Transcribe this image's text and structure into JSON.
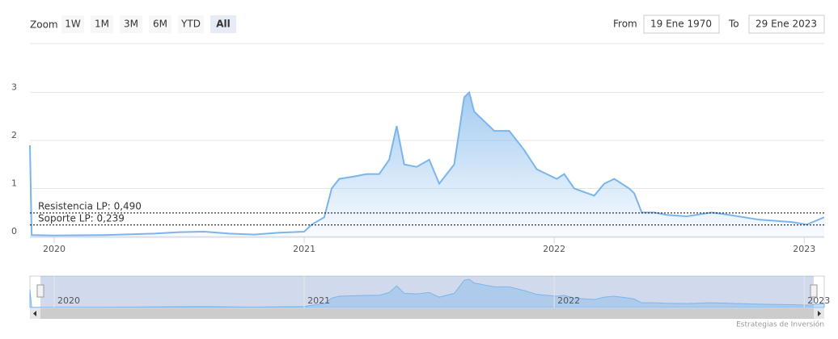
{
  "chart_data": {
    "type": "area",
    "range_selector": {
      "label": "Zoom",
      "buttons": [
        "1W",
        "1M",
        "3M",
        "6M",
        "YTD",
        "All"
      ],
      "selected": 5
    },
    "inputs": {
      "from_label": "From",
      "from": "19 Ene 1970",
      "to_label": "To",
      "to": "29 Ene 2023"
    },
    "series": [
      {
        "color": "#7cb5ec",
        "x": [
          2019.903,
          2019.91,
          2020.0,
          2020.2,
          2020.4,
          2020.5,
          2020.6,
          2020.7,
          2020.8,
          2020.9,
          2021.0,
          2021.03,
          2021.08,
          2021.11,
          2021.14,
          2021.2,
          2021.25,
          2021.3,
          2021.34,
          2021.37,
          2021.4,
          2021.45,
          2021.5,
          2021.54,
          2021.6,
          2021.64,
          2021.66,
          2021.68,
          2021.72,
          2021.76,
          2021.82,
          2021.88,
          2021.93,
          2021.97,
          2022.01,
          2022.04,
          2022.08,
          2022.16,
          2022.2,
          2022.24,
          2022.3,
          2022.32,
          2022.35,
          2022.4,
          2022.45,
          2022.53,
          2022.63,
          2022.7,
          2022.82,
          2022.95,
          2023.01,
          2023.08
        ],
        "values": [
          1.9,
          0.03,
          0.02,
          0.03,
          0.06,
          0.09,
          0.1,
          0.06,
          0.04,
          0.08,
          0.1,
          0.25,
          0.4,
          1.0,
          1.2,
          1.25,
          1.3,
          1.3,
          1.6,
          2.3,
          1.5,
          1.45,
          1.6,
          1.1,
          1.5,
          2.9,
          3.0,
          2.6,
          2.4,
          2.2,
          2.2,
          1.8,
          1.4,
          1.3,
          1.2,
          1.3,
          1.0,
          0.85,
          1.1,
          1.2,
          1.0,
          0.9,
          0.5,
          0.5,
          0.45,
          0.42,
          0.5,
          0.45,
          0.35,
          0.3,
          0.25,
          0.4
        ]
      }
    ],
    "xlim": [
      2019.903,
      2023.08
    ],
    "xticks": [
      2020,
      2021,
      2022,
      2023
    ],
    "ylim": [
      0,
      4
    ],
    "yticks": [
      0,
      1,
      2,
      3
    ],
    "grid": true,
    "plot_lines": [
      {
        "value": 0.49,
        "label": "Resistencia LP: 0,490"
      },
      {
        "value": 0.239,
        "label": "Soporte LP: 0,239"
      }
    ],
    "credits": "Estrategias de Inversión"
  }
}
